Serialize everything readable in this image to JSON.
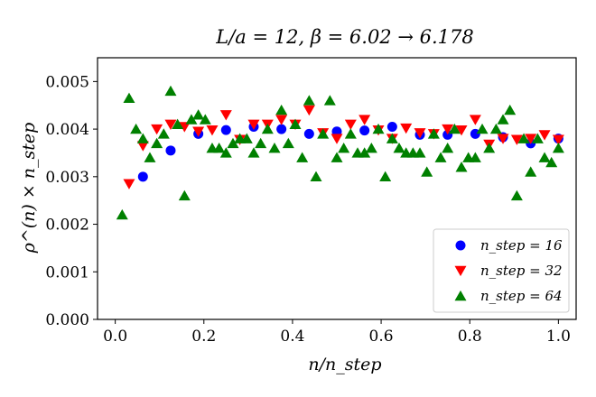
{
  "chart_data": {
    "type": "scatter",
    "title": "L/a = 12, β = 6.02 → 6.178",
    "xlabel": "n/n_step",
    "ylabel": "ρ^(n) × n_step",
    "xlim": [
      -0.04,
      1.04
    ],
    "ylim": [
      0.0,
      0.0055
    ],
    "xticks": [
      0.0,
      0.2,
      0.4,
      0.6,
      0.8,
      1.0
    ],
    "xtick_labels": [
      "0.0",
      "0.2",
      "0.4",
      "0.6",
      "0.8",
      "1.0"
    ],
    "yticks": [
      0.0,
      0.001,
      0.002,
      0.003,
      0.004,
      0.005
    ],
    "ytick_labels": [
      "0.000",
      "0.001",
      "0.002",
      "0.003",
      "0.004",
      "0.005"
    ],
    "legend_position": "bottom-right",
    "series": [
      {
        "name": "n_step = 16",
        "legend_label": "n_step = 16",
        "marker": "circle",
        "color": "#0000ff",
        "x": [
          0.0625,
          0.125,
          0.1875,
          0.25,
          0.3125,
          0.375,
          0.4375,
          0.5,
          0.5625,
          0.625,
          0.6875,
          0.75,
          0.8125,
          0.875,
          0.9375,
          1.0
        ],
        "y": [
          0.003,
          0.00355,
          0.0039,
          0.00398,
          0.00405,
          0.004,
          0.0039,
          0.00395,
          0.00397,
          0.00405,
          0.00388,
          0.00388,
          0.0039,
          0.00383,
          0.0037,
          0.0038
        ]
      },
      {
        "name": "n_step = 32",
        "legend_label": "n_step = 32",
        "marker": "triangle-down",
        "color": "#ff0000",
        "x": [
          0.03125,
          0.0625,
          0.09375,
          0.125,
          0.15625,
          0.1875,
          0.21875,
          0.25,
          0.28125,
          0.3125,
          0.34375,
          0.375,
          0.40625,
          0.4375,
          0.46875,
          0.5,
          0.53125,
          0.5625,
          0.59375,
          0.625,
          0.65625,
          0.6875,
          0.71875,
          0.75,
          0.78125,
          0.8125,
          0.84375,
          0.875,
          0.90625,
          0.9375,
          0.96875,
          1.0
        ],
        "y": [
          0.00285,
          0.00365,
          0.004,
          0.0041,
          0.00405,
          0.00395,
          0.00398,
          0.0043,
          0.00378,
          0.0041,
          0.0041,
          0.0042,
          0.0041,
          0.0044,
          0.00392,
          0.0038,
          0.0041,
          0.0042,
          0.00398,
          0.0038,
          0.00402,
          0.00392,
          0.0039,
          0.004,
          0.00398,
          0.0042,
          0.00368,
          0.0038,
          0.00378,
          0.0038,
          0.00388,
          0.00378
        ]
      },
      {
        "name": "n_step = 64",
        "legend_label": "n_step = 64",
        "marker": "triangle-up",
        "color": "#008000",
        "x": [
          0.015625,
          0.03125,
          0.046875,
          0.0625,
          0.078125,
          0.09375,
          0.109375,
          0.125,
          0.140625,
          0.15625,
          0.171875,
          0.1875,
          0.203125,
          0.21875,
          0.234375,
          0.25,
          0.265625,
          0.28125,
          0.296875,
          0.3125,
          0.328125,
          0.34375,
          0.359375,
          0.375,
          0.390625,
          0.40625,
          0.421875,
          0.4375,
          0.453125,
          0.46875,
          0.484375,
          0.5,
          0.515625,
          0.53125,
          0.546875,
          0.5625,
          0.578125,
          0.59375,
          0.609375,
          0.625,
          0.640625,
          0.65625,
          0.671875,
          0.6875,
          0.703125,
          0.71875,
          0.734375,
          0.75,
          0.765625,
          0.78125,
          0.796875,
          0.8125,
          0.828125,
          0.84375,
          0.859375,
          0.875,
          0.890625,
          0.90625,
          0.921875,
          0.9375,
          0.953125,
          0.96875,
          0.984375,
          1.0
        ],
        "y": [
          0.0022,
          0.00465,
          0.004,
          0.0038,
          0.0034,
          0.0037,
          0.0039,
          0.0048,
          0.0041,
          0.0026,
          0.0042,
          0.0043,
          0.0042,
          0.0036,
          0.0036,
          0.0035,
          0.0037,
          0.0038,
          0.0038,
          0.0035,
          0.0037,
          0.004,
          0.0036,
          0.0044,
          0.0037,
          0.0041,
          0.0034,
          0.0046,
          0.003,
          0.0039,
          0.0046,
          0.0034,
          0.0036,
          0.0039,
          0.0035,
          0.0035,
          0.0036,
          0.004,
          0.003,
          0.0038,
          0.0036,
          0.0035,
          0.0035,
          0.0035,
          0.0031,
          0.0039,
          0.0034,
          0.0036,
          0.004,
          0.0032,
          0.0034,
          0.0034,
          0.004,
          0.0036,
          0.004,
          0.0042,
          0.0044,
          0.0026,
          0.0038,
          0.0031,
          0.0038,
          0.0034,
          0.0033,
          0.0036
        ]
      }
    ]
  }
}
